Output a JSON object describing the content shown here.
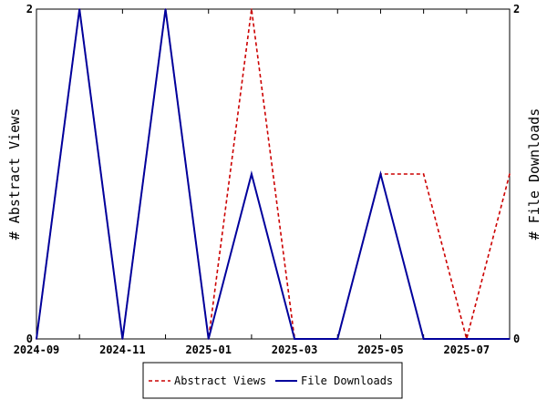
{
  "chart_data": {
    "type": "line",
    "x": [
      "2024-09",
      "2024-10",
      "2024-11",
      "2024-12",
      "2025-01",
      "2025-02",
      "2025-03",
      "2025-04",
      "2025-05",
      "2025-06",
      "2025-07",
      "2025-08"
    ],
    "x_tick_labels": [
      "2024-09",
      "2024-11",
      "2025-01",
      "2025-03",
      "2025-05",
      "2025-07"
    ],
    "ylabel_left": "# Abstract Views",
    "ylabel_right": "# File Downloads",
    "ylim_left": [
      0,
      2
    ],
    "ylim_right": [
      0,
      2
    ],
    "y_tick_labels_left": [
      "0",
      "2"
    ],
    "y_tick_labels_right": [
      "0",
      "2"
    ],
    "grid": false,
    "legend_position": "bottom-center",
    "series": [
      {
        "name": "Abstract Views",
        "axis": "left",
        "color": "#cc0000",
        "style": "dashed",
        "values": [
          0,
          2,
          0,
          2,
          0,
          2,
          0,
          0,
          1,
          1,
          0,
          1
        ]
      },
      {
        "name": "File Downloads",
        "axis": "right",
        "color": "#00009c",
        "style": "solid",
        "values": [
          0,
          2,
          0,
          2,
          0,
          1,
          0,
          0,
          1,
          0,
          0,
          0
        ]
      }
    ]
  }
}
